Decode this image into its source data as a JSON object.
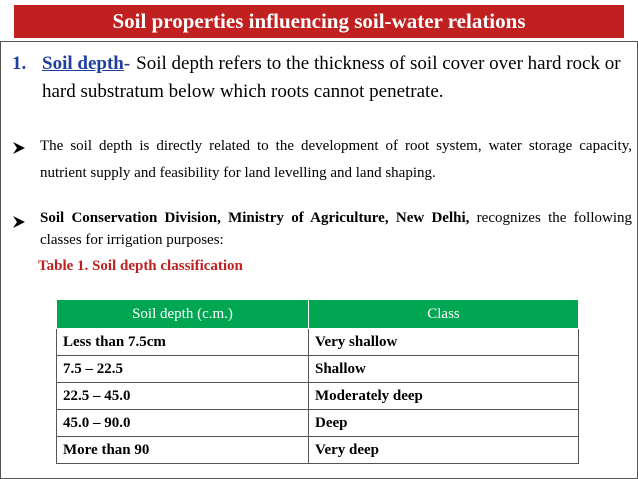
{
  "header": {
    "title": "Soil properties influencing soil-water relations"
  },
  "item1": {
    "number": "1.",
    "term": "Soil depth",
    "dash": "-",
    "text": "Soil depth refers to the thickness of soil cover over hard rock or hard substratum below which roots cannot penetrate."
  },
  "bullets": [
    {
      "text": "The soil depth is directly related to the development of root system, water storage capacity, nutrient supply and feasibility for land levelling and land shaping."
    },
    {
      "bold": "Soil Conservation Division, Ministry of Agriculture, New Delhi,",
      "text": "recognizes the following classes for irrigation purposes:"
    }
  ],
  "table": {
    "caption": "Table 1. Soil depth classification",
    "columns": [
      "Soil depth (c.m.)",
      "Class"
    ],
    "rows": [
      [
        "Less than 7.5cm",
        "Very shallow"
      ],
      [
        "7.5 – 22.5",
        "Shallow"
      ],
      [
        "22.5 – 45.0",
        "Moderately deep"
      ],
      [
        "45.0 – 90.0",
        "Deep"
      ],
      [
        "More than 90",
        "Very deep"
      ]
    ]
  }
}
